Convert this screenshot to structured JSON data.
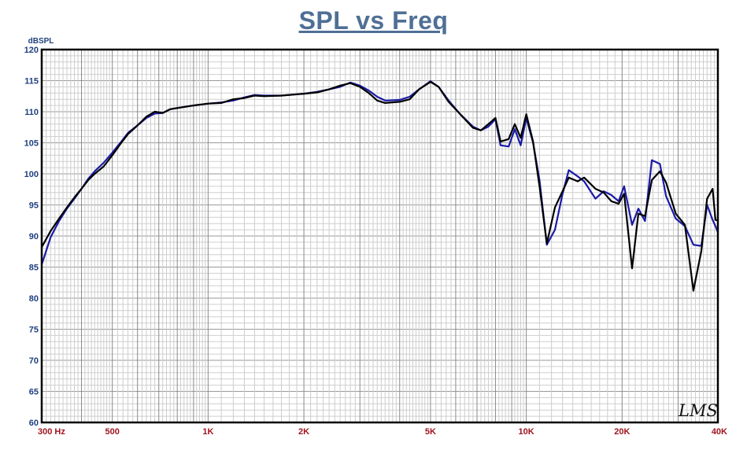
{
  "title": "SPL vs Freq",
  "logo": "LMS",
  "chart_data": {
    "type": "line",
    "title": "SPL vs Freq",
    "ylabel": "dBSPL",
    "xlabel": "",
    "x_scale": "log",
    "xlim": [
      300,
      40000
    ],
    "ylim": [
      60,
      120
    ],
    "grid": true,
    "yticks": [
      60,
      65,
      70,
      75,
      80,
      85,
      90,
      95,
      100,
      105,
      110,
      115,
      120
    ],
    "xtick_labels": [
      {
        "value": 300,
        "label": "300  Hz"
      },
      {
        "value": 500,
        "label": "500"
      },
      {
        "value": 1000,
        "label": "1K"
      },
      {
        "value": 2000,
        "label": "2K"
      },
      {
        "value": 5000,
        "label": "5K"
      },
      {
        "value": 10000,
        "label": "10K"
      },
      {
        "value": 20000,
        "label": "20K"
      },
      {
        "value": 40000,
        "label": "40K"
      }
    ],
    "colors": {
      "black_series": "#000000",
      "blue_series": "#1a1aa8",
      "title": "#4f6f95",
      "x_tick": "#a0141e",
      "y_tick": "#1f3f7f"
    },
    "series": [
      {
        "color": "#000000",
        "points": [
          [
            300,
            88.2
          ],
          [
            320,
            90.8
          ],
          [
            340,
            92.8
          ],
          [
            360,
            94.6
          ],
          [
            380,
            96.2
          ],
          [
            400,
            97.6
          ],
          [
            420,
            99.0
          ],
          [
            440,
            100.0
          ],
          [
            470,
            101.2
          ],
          [
            500,
            103.0
          ],
          [
            530,
            104.8
          ],
          [
            560,
            106.4
          ],
          [
            600,
            107.8
          ],
          [
            640,
            109.2
          ],
          [
            680,
            110.0
          ],
          [
            720,
            109.8
          ],
          [
            760,
            110.4
          ],
          [
            800,
            110.6
          ],
          [
            900,
            111.0
          ],
          [
            1000,
            111.3
          ],
          [
            1100,
            111.4
          ],
          [
            1200,
            112.0
          ],
          [
            1300,
            112.2
          ],
          [
            1400,
            112.6
          ],
          [
            1500,
            112.5
          ],
          [
            1700,
            112.6
          ],
          [
            2000,
            112.9
          ],
          [
            2200,
            113.1
          ],
          [
            2400,
            113.6
          ],
          [
            2600,
            114.2
          ],
          [
            2800,
            114.6
          ],
          [
            3000,
            114.0
          ],
          [
            3200,
            113.0
          ],
          [
            3400,
            111.8
          ],
          [
            3600,
            111.4
          ],
          [
            4000,
            111.6
          ],
          [
            4300,
            112.0
          ],
          [
            4600,
            113.6
          ],
          [
            5000,
            114.8
          ],
          [
            5300,
            114.0
          ],
          [
            5700,
            111.6
          ],
          [
            6200,
            109.6
          ],
          [
            6800,
            107.4
          ],
          [
            7200,
            107.0
          ],
          [
            7600,
            108.0
          ],
          [
            8000,
            109.0
          ],
          [
            8300,
            105.2
          ],
          [
            8800,
            105.6
          ],
          [
            9200,
            108.0
          ],
          [
            9600,
            105.8
          ],
          [
            10000,
            109.6
          ],
          [
            10500,
            105.2
          ],
          [
            11000,
            98.0
          ],
          [
            11600,
            88.8
          ],
          [
            12300,
            94.6
          ],
          [
            13000,
            97.2
          ],
          [
            13600,
            99.4
          ],
          [
            14500,
            98.8
          ],
          [
            15200,
            99.4
          ],
          [
            16500,
            97.6
          ],
          [
            17500,
            97.0
          ],
          [
            18500,
            95.6
          ],
          [
            19500,
            95.2
          ],
          [
            20300,
            96.8
          ],
          [
            21500,
            84.8
          ],
          [
            22500,
            93.6
          ],
          [
            23600,
            93.2
          ],
          [
            24800,
            99.0
          ],
          [
            26300,
            100.4
          ],
          [
            27500,
            98.6
          ],
          [
            29500,
            93.6
          ],
          [
            31500,
            91.8
          ],
          [
            33500,
            81.2
          ],
          [
            35500,
            87.6
          ],
          [
            37000,
            96.0
          ],
          [
            38500,
            97.6
          ],
          [
            39300,
            92.6
          ],
          [
            40000,
            92.5
          ]
        ]
      },
      {
        "color": "#1a1aa8",
        "points": [
          [
            300,
            85.4
          ],
          [
            320,
            89.8
          ],
          [
            340,
            92.4
          ],
          [
            360,
            94.4
          ],
          [
            380,
            96.0
          ],
          [
            400,
            97.6
          ],
          [
            420,
            99.2
          ],
          [
            440,
            100.4
          ],
          [
            470,
            101.8
          ],
          [
            500,
            103.4
          ],
          [
            530,
            105.0
          ],
          [
            560,
            106.6
          ],
          [
            600,
            107.8
          ],
          [
            640,
            109.0
          ],
          [
            680,
            109.7
          ],
          [
            720,
            109.8
          ],
          [
            760,
            110.4
          ],
          [
            800,
            110.6
          ],
          [
            900,
            111.0
          ],
          [
            1000,
            111.3
          ],
          [
            1100,
            111.5
          ],
          [
            1200,
            111.8
          ],
          [
            1300,
            112.3
          ],
          [
            1400,
            112.7
          ],
          [
            1500,
            112.6
          ],
          [
            1700,
            112.6
          ],
          [
            2000,
            112.9
          ],
          [
            2200,
            113.2
          ],
          [
            2400,
            113.6
          ],
          [
            2600,
            114.0
          ],
          [
            2800,
            114.7
          ],
          [
            3000,
            114.2
          ],
          [
            3200,
            113.4
          ],
          [
            3400,
            112.4
          ],
          [
            3600,
            111.8
          ],
          [
            4000,
            111.9
          ],
          [
            4300,
            112.4
          ],
          [
            4600,
            113.6
          ],
          [
            5000,
            114.9
          ],
          [
            5300,
            114.0
          ],
          [
            5700,
            111.8
          ],
          [
            6200,
            109.6
          ],
          [
            6800,
            107.6
          ],
          [
            7200,
            107.0
          ],
          [
            7600,
            107.6
          ],
          [
            8000,
            108.8
          ],
          [
            8300,
            104.6
          ],
          [
            8800,
            104.4
          ],
          [
            9200,
            107.2
          ],
          [
            9600,
            104.6
          ],
          [
            10000,
            109.0
          ],
          [
            10500,
            105.0
          ],
          [
            11000,
            99.0
          ],
          [
            11600,
            88.6
          ],
          [
            12300,
            91.0
          ],
          [
            13000,
            96.8
          ],
          [
            13600,
            100.6
          ],
          [
            14500,
            99.6
          ],
          [
            15200,
            98.8
          ],
          [
            16500,
            96.0
          ],
          [
            17500,
            97.2
          ],
          [
            18500,
            96.6
          ],
          [
            19500,
            95.6
          ],
          [
            20300,
            98.0
          ],
          [
            21500,
            91.8
          ],
          [
            22500,
            94.4
          ],
          [
            23600,
            92.4
          ],
          [
            24800,
            102.2
          ],
          [
            26300,
            101.6
          ],
          [
            27500,
            96.4
          ],
          [
            29500,
            92.8
          ],
          [
            31500,
            91.6
          ],
          [
            33500,
            88.6
          ],
          [
            35500,
            88.4
          ],
          [
            37000,
            95.0
          ],
          [
            38500,
            92.6
          ],
          [
            39300,
            91.6
          ],
          [
            40000,
            90.6
          ]
        ]
      }
    ]
  }
}
